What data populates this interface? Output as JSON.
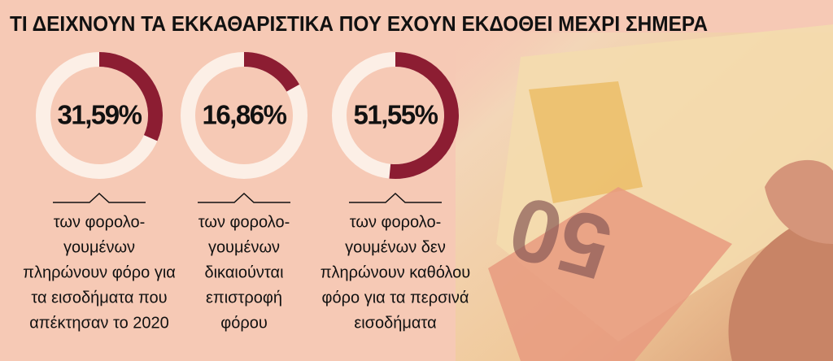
{
  "title": "ΤΙ ΔΕΙΧΝΟΥΝ ΤΑ ΕΚΚΑΘΑΡΙΣΤΙΚΑ ΠΟΥ ΕΧΟΥΝ ΕΚΔΟΘΕΙ ΜΕΧΡΙ ΣΗΜΕΡΑ",
  "chart_data": [
    {
      "type": "donut",
      "values": [
        31.59
      ],
      "value_labels": [
        "31,59%"
      ],
      "color": "#8c1d32",
      "caption": [
        "των φορολο-",
        "γουμένων",
        "πληρώνουν φόρο για",
        "τα εισοδήματα που",
        "απέκτησαν το 2020"
      ]
    },
    {
      "type": "donut",
      "values": [
        16.86
      ],
      "value_labels": [
        "16,86%"
      ],
      "color": "#8c1d32",
      "caption": [
        "των φορολο-",
        "γουμένων",
        "δικαιούνται",
        "επιστροφή",
        "φόρου"
      ]
    },
    {
      "type": "donut",
      "values": [
        51.55
      ],
      "value_labels": [
        "51,55%"
      ],
      "color": "#8c1d32",
      "caption": [
        "των φορολο-",
        "γουμένων δεν",
        "πληρώνουν καθόλου",
        "φόρο για τα περσινά",
        "εισοδήματα"
      ]
    }
  ]
}
